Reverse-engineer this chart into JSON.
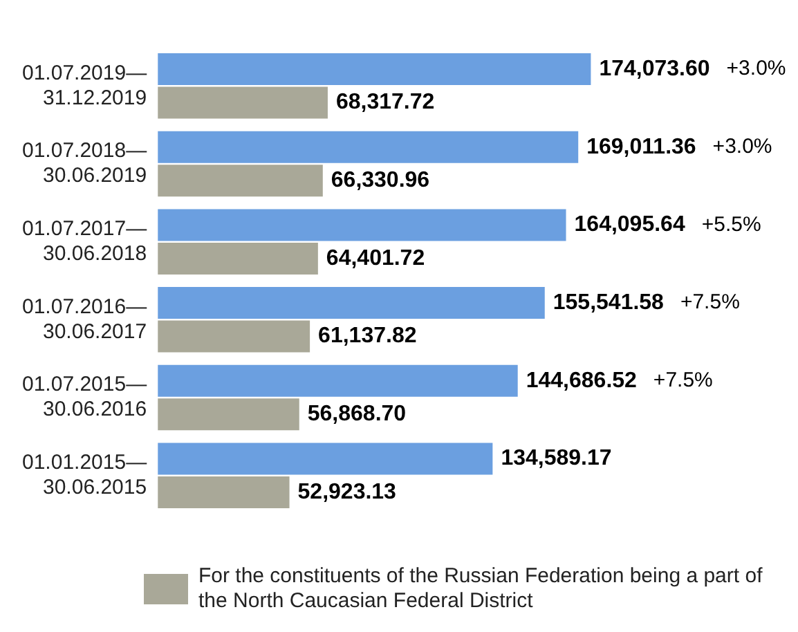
{
  "chart_data": {
    "type": "bar",
    "orientation": "horizontal",
    "categories": [
      "01.07.2019—31.12.2019",
      "01.07.2018—30.06.2019",
      "01.07.2017—30.06.2018",
      "01.07.2016—30.06.2017",
      "01.07.2015—30.06.2016",
      "01.01.2015—30.06.2015"
    ],
    "series": [
      {
        "color": "#6b9fe0",
        "values": [
          174073.6,
          169011.36,
          164095.64,
          155541.58,
          144686.52,
          134589.17
        ],
        "value_labels": [
          "174,073.60",
          "169,011.36",
          "164,095.64",
          "155,541.58",
          "144,686.52",
          "134,589.17"
        ]
      },
      {
        "name": "For the constituents of the Russian Federation being a part of the North Caucasian Federal District",
        "color": "#a9a898",
        "values": [
          68317.72,
          66330.96,
          64401.72,
          61137.82,
          56868.7,
          52923.13
        ],
        "value_labels": [
          "68,317.72",
          "66,330.96",
          "64,401.72",
          "61,137.82",
          "56,868.70",
          "52,923.13"
        ]
      }
    ],
    "annotations": [
      "+3.0%",
      "+3.0%",
      "+5.5%",
      "+7.5%",
      "+7.5%"
    ],
    "legend": "bottom",
    "grid": false
  }
}
